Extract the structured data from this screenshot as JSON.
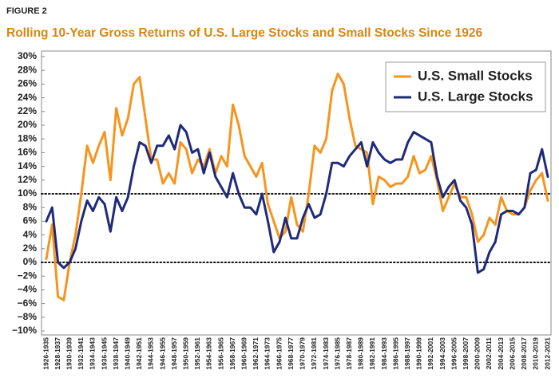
{
  "chart_data": {
    "type": "line",
    "figure_label": "FIGURE 2",
    "title": "Rolling 10-Year Gross Returns of U.S. Large Stocks and Small Stocks Since 1926",
    "categories": [
      "1926-1935",
      null,
      "1928-1937",
      null,
      "1930-1939",
      null,
      "1932-1941",
      null,
      "1934-1943",
      null,
      "1936-1945",
      null,
      "1938-1947",
      null,
      "1940-1949",
      null,
      "1942-1951",
      null,
      "1944-1953",
      null,
      "1946-1955",
      null,
      "1948-1957",
      null,
      "1950-1959",
      null,
      "1952-1961",
      null,
      "1954-1963",
      null,
      "1956-1965",
      null,
      "1958-1967",
      null,
      "1960-1969",
      null,
      "1962-1971",
      null,
      "1964-1973",
      null,
      "1966-1975",
      null,
      "1968-1977",
      null,
      "1970-1979",
      null,
      "1972-1981",
      null,
      "1974-1983",
      null,
      "1976-1985",
      null,
      "1978-1987",
      null,
      "1980-1989",
      null,
      "1982-1991",
      null,
      "1984-1993",
      null,
      "1986-1995",
      null,
      "1988-1997",
      null,
      "1990-1999",
      null,
      "1992-2001",
      null,
      "1994-2003",
      null,
      "1996-2005",
      null,
      "1998-2007",
      null,
      "2000-2009",
      null,
      "2002-2011",
      null,
      "2004-2013",
      null,
      "2006-2015",
      null,
      "2008-2017",
      null,
      "2010-2019",
      null,
      "2012-2021"
    ],
    "series": [
      {
        "name": "U.S. Small Stocks",
        "color": "#f7941d",
        "values": [
          0.5,
          5.5,
          -5,
          -5.5,
          0,
          4,
          10,
          17,
          14.5,
          17,
          19,
          12,
          22.5,
          18.5,
          21,
          26,
          27,
          21,
          15,
          15,
          11.5,
          13,
          11.5,
          17.5,
          16.5,
          13,
          15,
          14,
          16.5,
          13,
          15.5,
          14,
          23,
          20,
          15.5,
          14,
          12.5,
          14.5,
          8.5,
          6,
          3.5,
          4.5,
          9.5,
          5.5,
          4.5,
          10,
          17,
          16,
          18,
          25,
          27.5,
          26,
          21,
          17,
          16.5,
          16,
          8.5,
          12.5,
          12,
          11,
          11.5,
          11.5,
          12.5,
          15.5,
          13,
          13.5,
          15.5,
          12,
          7.5,
          9.5,
          11.5,
          9.5,
          9.5,
          7,
          3,
          4,
          6.5,
          5.5,
          9.5,
          7.5,
          7,
          7,
          8,
          10.5,
          12,
          13,
          9
        ]
      },
      {
        "name": "U.S. Large Stocks",
        "color": "#1f2a7a",
        "values": [
          6,
          8,
          0,
          -0.8,
          0,
          2,
          6,
          9,
          7.5,
          9.5,
          8.5,
          4.5,
          9.5,
          7.5,
          9.5,
          14,
          17.5,
          17,
          14.5,
          17,
          17,
          18.5,
          16.5,
          20,
          19,
          16,
          16.5,
          13,
          16,
          12.5,
          11,
          9.5,
          13,
          10,
          8,
          8,
          7,
          10,
          6,
          1.5,
          3,
          6.5,
          3.5,
          3.5,
          6.5,
          8.5,
          6.5,
          7,
          10,
          14.5,
          14.5,
          14,
          15.5,
          16.5,
          17.5,
          14,
          17.5,
          16,
          15,
          14.5,
          15,
          15,
          17.5,
          19,
          18.5,
          18,
          17.5,
          12.5,
          9.5,
          11,
          12,
          9,
          8,
          5.5,
          -1.5,
          -1,
          1.5,
          3,
          7,
          7.5,
          7.5,
          7,
          8,
          13,
          13.5,
          16.5,
          12.5
        ]
      }
    ],
    "ylim": [
      -10,
      30
    ],
    "yticks": [
      {
        "value": 30,
        "label": "30%"
      },
      {
        "value": 28,
        "label": "28%"
      },
      {
        "value": 26,
        "label": "26%"
      },
      {
        "value": 24,
        "label": "24%"
      },
      {
        "value": 22,
        "label": "22%"
      },
      {
        "value": 20,
        "label": "20%"
      },
      {
        "value": 18,
        "label": "18%"
      },
      {
        "value": 16,
        "label": "16%"
      },
      {
        "value": 14,
        "label": "14%"
      },
      {
        "value": 12,
        "label": "12%"
      },
      {
        "value": 10,
        "label": "10%"
      },
      {
        "value": 8,
        "label": "8%"
      },
      {
        "value": 6,
        "label": "6%"
      },
      {
        "value": 4,
        "label": "4%"
      },
      {
        "value": 2,
        "label": "2%"
      },
      {
        "value": 0,
        "label": "0%"
      },
      {
        "value": -2,
        "label": "−2%"
      },
      {
        "value": -4,
        "label": "−4%"
      },
      {
        "value": -6,
        "label": "−6%"
      },
      {
        "value": -8,
        "label": "−8%"
      },
      {
        "value": -10,
        "label": "−10%"
      }
    ],
    "reference_lines": [
      0,
      10
    ],
    "grid": false,
    "legend": "upper right"
  }
}
